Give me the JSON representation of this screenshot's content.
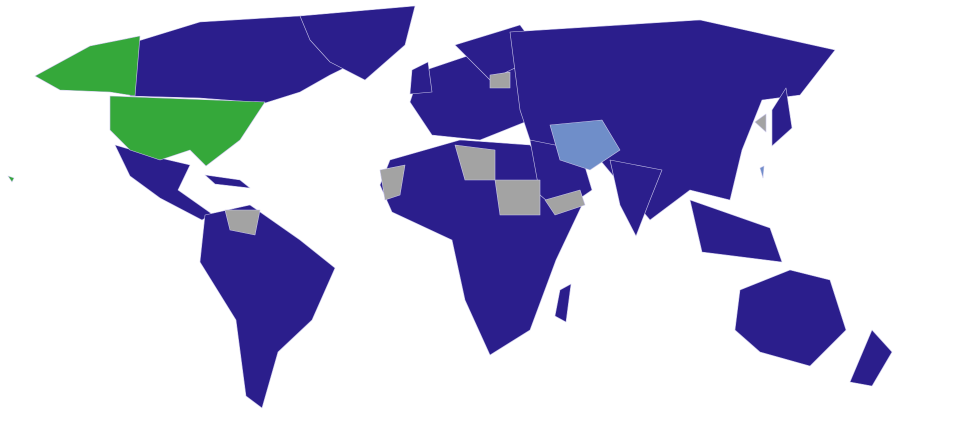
{
  "map": {
    "projection": "world",
    "colors": {
      "background": "#ffffff",
      "default": "#2b1e8c",
      "highlight_green": "#35a83a",
      "highlight_light_blue": "#6f8ec9",
      "no_data_gray": "#a3a3a3",
      "border": "#c9c6ea"
    }
  }
}
